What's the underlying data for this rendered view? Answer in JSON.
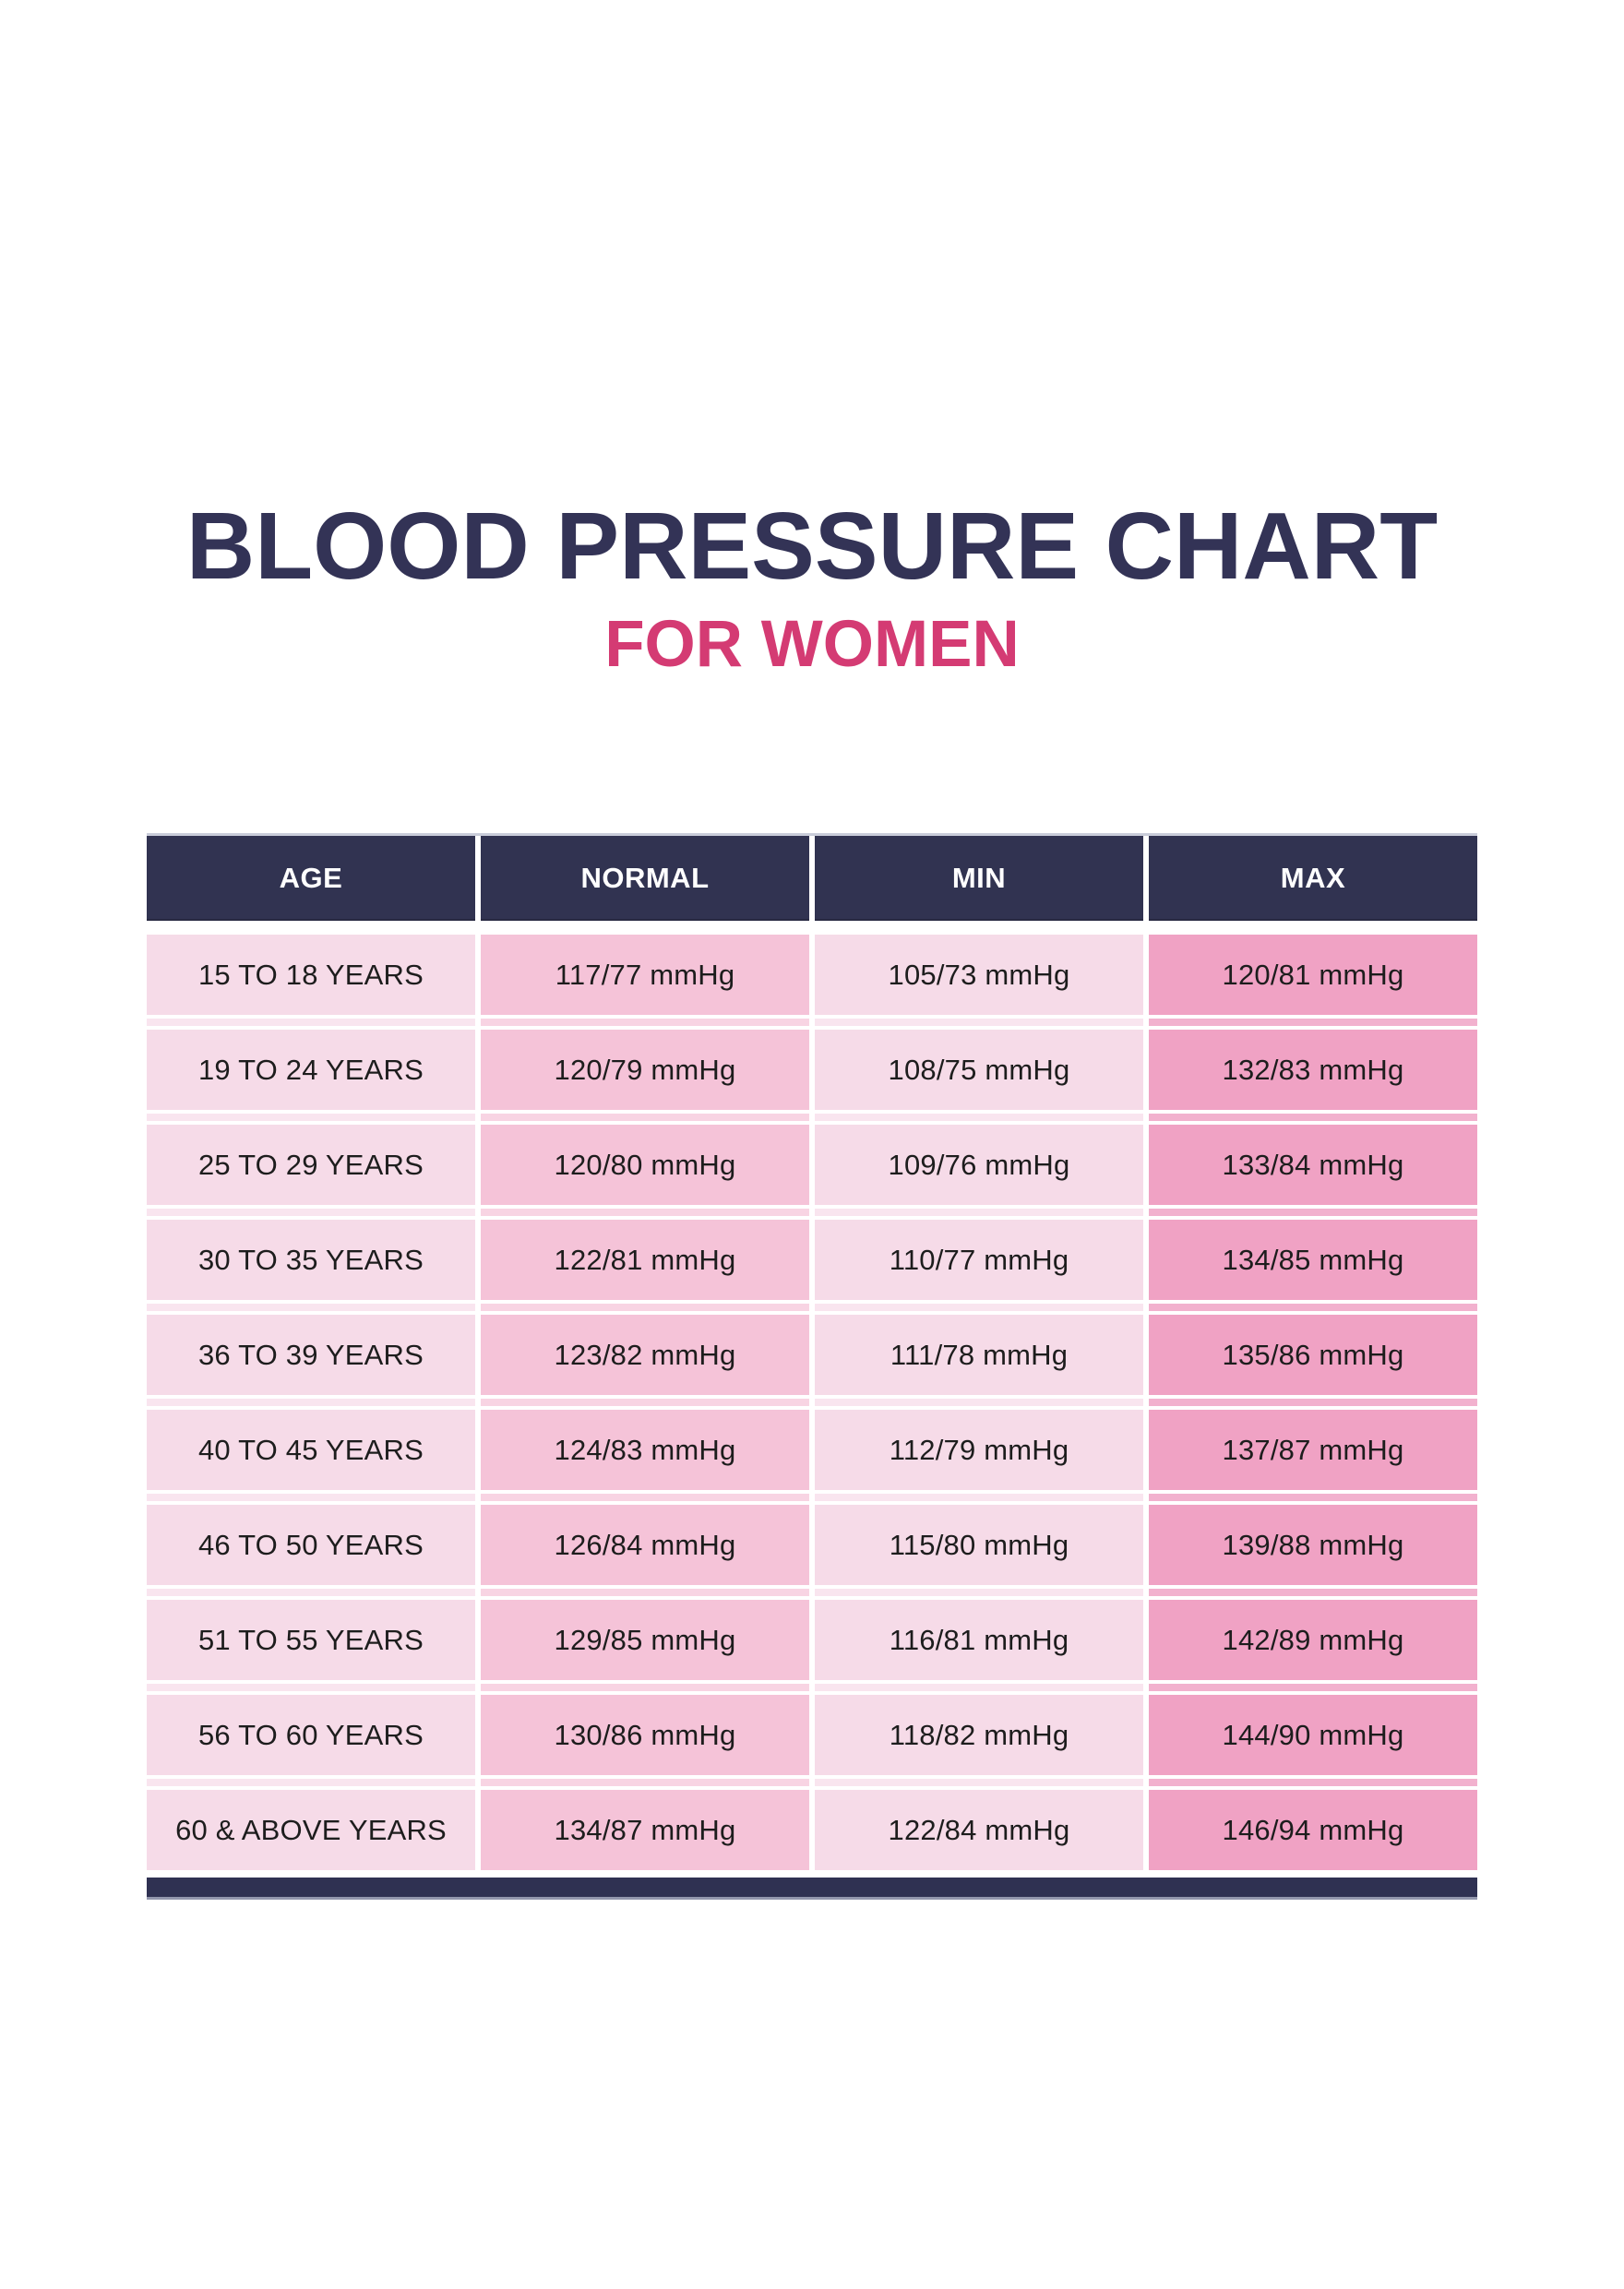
{
  "title": "BLOOD PRESSURE CHART",
  "subtitle": "FOR WOMEN",
  "colors": {
    "title_navy": "#333356",
    "subtitle_pink": "#d43b73",
    "header_navy": "#313351",
    "footer_navy": "#2f3152",
    "age_min_column_pink": "#f6dbe8",
    "normal_column_pink": "#f5c3d8",
    "max_column_pink": "#f0a2c4",
    "cell_text": "#1d1d1d"
  },
  "chart_data": {
    "type": "table",
    "title": "BLOOD PRESSURE CHART",
    "subtitle": "FOR WOMEN",
    "columns": [
      "AGE",
      "NORMAL",
      "MIN",
      "MAX"
    ],
    "unit": "mmHg",
    "rows": [
      [
        "15 TO 18 YEARS",
        "117/77 mmHg",
        "105/73 mmHg",
        "120/81 mmHg"
      ],
      [
        "19 TO 24 YEARS",
        "120/79 mmHg",
        "108/75 mmHg",
        "132/83 mmHg"
      ],
      [
        "25 TO 29 YEARS",
        "120/80 mmHg",
        "109/76 mmHg",
        "133/84 mmHg"
      ],
      [
        "30 TO 35 YEARS",
        "122/81 mmHg",
        "110/77 mmHg",
        "134/85 mmHg"
      ],
      [
        "36 TO 39 YEARS",
        "123/82 mmHg",
        "111/78 mmHg",
        "135/86 mmHg"
      ],
      [
        "40 TO 45 YEARS",
        "124/83 mmHg",
        "112/79 mmHg",
        "137/87 mmHg"
      ],
      [
        "46 TO 50 YEARS",
        "126/84 mmHg",
        "115/80 mmHg",
        "139/88 mmHg"
      ],
      [
        "51 TO 55 YEARS",
        "129/85 mmHg",
        "116/81 mmHg",
        "142/89 mmHg"
      ],
      [
        "56 TO 60 YEARS",
        "130/86 mmHg",
        "118/82 mmHg",
        "144/90 mmHg"
      ],
      [
        "60 & ABOVE YEARS",
        "134/87 mmHg",
        "122/84 mmHg",
        "146/94 mmHg"
      ]
    ]
  }
}
